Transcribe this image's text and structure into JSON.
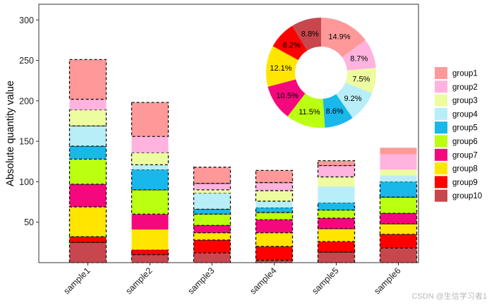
{
  "chart_data": {
    "type": "bar",
    "stacked": true,
    "categories": [
      "sample1",
      "sample2",
      "sample3",
      "sample4",
      "sample5",
      "sample6"
    ],
    "ylabel": "Absolute quantity value",
    "ylim": [
      0,
      320
    ],
    "yticks": [
      50,
      100,
      150,
      200,
      250,
      300
    ],
    "grid": false,
    "legend": "right",
    "series": [
      {
        "name": "group1",
        "color": "#FF9999",
        "values": [
          49,
          42,
          20,
          15,
          6,
          8
        ]
      },
      {
        "name": "group2",
        "color": "#FFB3DE",
        "values": [
          13,
          20,
          8,
          10,
          14,
          19
        ]
      },
      {
        "name": "group3",
        "color": "#EEFCA0",
        "values": [
          20,
          15,
          4,
          13,
          12,
          7
        ]
      },
      {
        "name": "group4",
        "color": "#B8EEF8",
        "values": [
          25,
          6,
          20,
          8,
          20,
          8
        ]
      },
      {
        "name": "group5",
        "color": "#18B8EA",
        "values": [
          16,
          25,
          6,
          6,
          9,
          19
        ]
      },
      {
        "name": "group6",
        "color": "#BBFF11",
        "values": [
          31,
          30,
          14,
          9,
          10,
          20
        ]
      },
      {
        "name": "group7",
        "color": "#F5087D",
        "values": [
          28,
          19,
          9,
          16,
          13,
          13
        ]
      },
      {
        "name": "group8",
        "color": "#FFE500",
        "values": [
          37,
          25,
          9,
          17,
          16,
          13
        ]
      },
      {
        "name": "group9",
        "color": "#FF0000",
        "values": [
          7,
          6,
          16,
          17,
          13,
          17
        ]
      },
      {
        "name": "group10",
        "color": "#C8474E",
        "values": [
          25,
          10,
          12,
          3,
          13,
          18
        ]
      }
    ],
    "outlined_segments": [
      [
        0,
        2,
        3,
        4,
        5,
        6,
        7,
        8,
        9
      ],
      [
        0,
        2,
        4,
        5,
        8,
        9
      ],
      [
        0,
        1,
        3,
        4,
        5,
        6,
        7,
        8,
        9
      ],
      [
        0,
        1,
        2,
        4,
        5,
        6,
        7,
        8,
        9
      ],
      [
        0,
        1,
        4,
        5,
        6,
        7,
        8,
        9
      ],
      [
        4,
        5,
        6,
        7,
        8,
        9
      ]
    ],
    "donut": {
      "labels": [
        "14.9%",
        "8.7%",
        "7.5%",
        "9.2%",
        "8.6%",
        "11.5%",
        "10.5%",
        "12.1%",
        "8.2%",
        "8.8%"
      ],
      "values": [
        14.9,
        8.7,
        7.5,
        9.2,
        8.6,
        11.5,
        10.5,
        12.1,
        8.2,
        8.8
      ]
    }
  },
  "watermark": "CSDN @生信学习者1"
}
